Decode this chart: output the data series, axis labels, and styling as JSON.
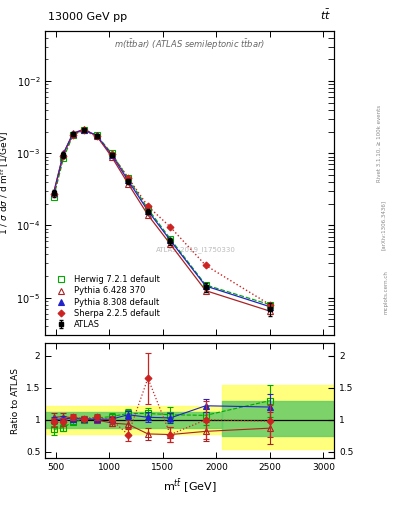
{
  "xlim": [
    400,
    3100
  ],
  "ylim_main": [
    3e-06,
    0.05
  ],
  "ylim_ratio": [
    0.4,
    2.2
  ],
  "atlas_x": [
    480,
    570,
    660,
    760,
    880,
    1020,
    1175,
    1360,
    1570,
    1900,
    2500
  ],
  "atlas_y": [
    0.00028,
    0.00095,
    0.00185,
    0.0021,
    0.00175,
    0.00095,
    0.00041,
    0.000155,
    6e-05,
    1.4e-05,
    7e-06
  ],
  "atlas_yerr_lo": [
    3e-05,
    8e-05,
    0.00013,
    0.00015,
    0.00012,
    7e-05,
    3e-05,
    1.3e-05,
    6e-06,
    2e-06,
    1.5e-06
  ],
  "atlas_yerr_hi": [
    3e-05,
    8e-05,
    0.00013,
    0.00015,
    0.00012,
    7e-05,
    3e-05,
    1.3e-05,
    6e-06,
    2e-06,
    1.5e-06
  ],
  "herwig_x": [
    480,
    570,
    660,
    760,
    880,
    1020,
    1175,
    1360,
    1570,
    1900,
    2500
  ],
  "herwig_y": [
    0.00025,
    0.00085,
    0.0018,
    0.0021,
    0.0018,
    0.001,
    0.00045,
    0.00017,
    6.5e-05,
    1.5e-05,
    8e-06
  ],
  "herwig_color": "#00aa00",
  "pythia6_x": [
    480,
    570,
    660,
    760,
    880,
    1020,
    1175,
    1360,
    1570,
    1900,
    2500
  ],
  "pythia6_y": [
    0.00029,
    0.001,
    0.0019,
    0.00215,
    0.00175,
    0.0009,
    0.00038,
    0.00014,
    5.5e-05,
    1.25e-05,
    6.5e-06
  ],
  "pythia6_color": "#aa2222",
  "pythia8_x": [
    480,
    570,
    660,
    760,
    880,
    1020,
    1175,
    1360,
    1570,
    1900,
    2500
  ],
  "pythia8_y": [
    0.00028,
    0.00098,
    0.00188,
    0.00212,
    0.00177,
    0.00096,
    0.00042,
    0.00016,
    6.2e-05,
    1.45e-05,
    7.5e-06
  ],
  "pythia8_color": "#2222cc",
  "sherpa_x": [
    480,
    570,
    660,
    760,
    880,
    1020,
    1175,
    1360,
    1570,
    1900,
    2500
  ],
  "sherpa_y": [
    0.00027,
    0.00092,
    0.00182,
    0.00208,
    0.00172,
    0.00098,
    0.00046,
    0.000185,
    9.5e-05,
    2.8e-05,
    8e-06
  ],
  "sherpa_color": "#cc2222",
  "herwig_ratio": [
    0.85,
    0.88,
    0.97,
    1.0,
    1.03,
    1.05,
    1.1,
    1.1,
    1.08,
    1.07,
    1.3
  ],
  "pythia6_ratio": [
    1.04,
    1.05,
    1.03,
    1.02,
    1.0,
    0.95,
    0.93,
    0.78,
    0.77,
    0.82,
    0.87
  ],
  "pythia8_ratio": [
    1.0,
    1.02,
    1.02,
    1.01,
    1.01,
    1.01,
    1.08,
    1.04,
    1.03,
    1.22,
    1.2
  ],
  "sherpa_ratio": [
    0.96,
    0.97,
    1.04,
    1.02,
    1.04,
    1.0,
    0.77,
    1.65,
    0.77,
    1.0,
    0.98
  ],
  "herwig_ratio_err": [
    0.08,
    0.05,
    0.04,
    0.04,
    0.04,
    0.05,
    0.07,
    0.09,
    0.12,
    0.15,
    0.25
  ],
  "pythia6_ratio_err": [
    0.06,
    0.05,
    0.04,
    0.04,
    0.04,
    0.05,
    0.07,
    0.09,
    0.12,
    0.15,
    0.25
  ],
  "pythia8_ratio_err": [
    0.05,
    0.04,
    0.03,
    0.03,
    0.03,
    0.04,
    0.06,
    0.08,
    0.08,
    0.1,
    0.2
  ],
  "sherpa_ratio_err": [
    0.07,
    0.06,
    0.05,
    0.04,
    0.05,
    0.06,
    0.1,
    0.4,
    0.12,
    0.3,
    0.25
  ],
  "band1_x1": 400,
  "band1_x2": 2050,
  "band1_green_lo": 0.88,
  "band1_green_hi": 1.12,
  "band1_yellow_lo": 0.78,
  "band1_yellow_hi": 1.22,
  "band2_x1": 2050,
  "band2_x2": 3100,
  "band2_green_lo": 0.75,
  "band2_green_hi": 1.3,
  "band2_yellow_lo": 0.55,
  "band2_yellow_hi": 1.55
}
